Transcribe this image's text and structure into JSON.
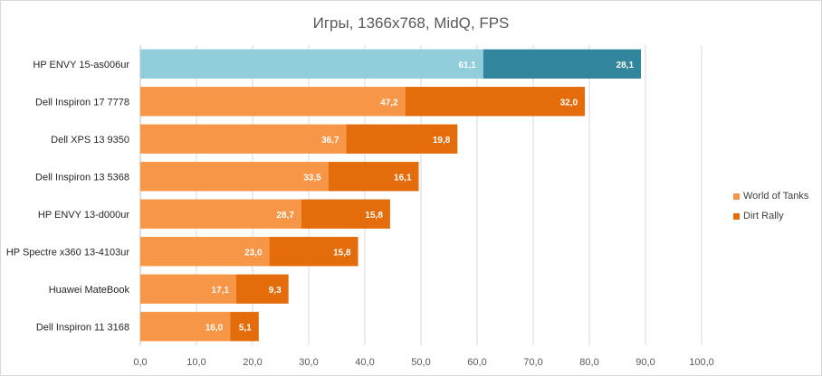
{
  "chart_data": {
    "type": "bar",
    "orientation": "horizontal",
    "stacked": true,
    "title": "Игры, 1366x768, MidQ, FPS",
    "categories": [
      "HP ENVY 15-as006ur",
      "Dell Inspiron 17 7778",
      "Dell XPS 13 9350",
      "Dell Inspiron 13 5368",
      "HP ENVY 13-d000ur",
      "HP Spectre x360 13-4103ur",
      "Huawei MateBook",
      "Dell Inspiron 11 3168"
    ],
    "series": [
      {
        "name": "World of Tanks",
        "color": "#f79646",
        "values": [
          61.1,
          47.2,
          36.7,
          33.5,
          28.7,
          23.0,
          17.1,
          16.0
        ],
        "labels": [
          "61,1",
          "47,2",
          "36,7",
          "33,5",
          "28,7",
          "23,0",
          "17,1",
          "16,0"
        ]
      },
      {
        "name": "Dirt Rally",
        "color": "#e46c0a",
        "values": [
          28.1,
          32.0,
          19.8,
          16.1,
          15.8,
          15.8,
          9.3,
          5.1
        ],
        "labels": [
          "28,1",
          "32,0",
          "19,8",
          "16,1",
          "15,8",
          "15,8",
          "9,3",
          "5,1"
        ]
      }
    ],
    "highlight": {
      "category": "HP ENVY 15-as006ur",
      "colors": [
        "#92cddc",
        "#31859c"
      ]
    },
    "xlim": [
      0,
      100
    ],
    "xticks": [
      0,
      10,
      20,
      30,
      40,
      50,
      60,
      70,
      80,
      90,
      100
    ],
    "xtick_labels": [
      "0,0",
      "10,0",
      "20,0",
      "30,0",
      "40,0",
      "50,0",
      "60,0",
      "70,0",
      "80,0",
      "90,0",
      "100,0"
    ],
    "grid": "vertical",
    "legend_position": "right"
  }
}
